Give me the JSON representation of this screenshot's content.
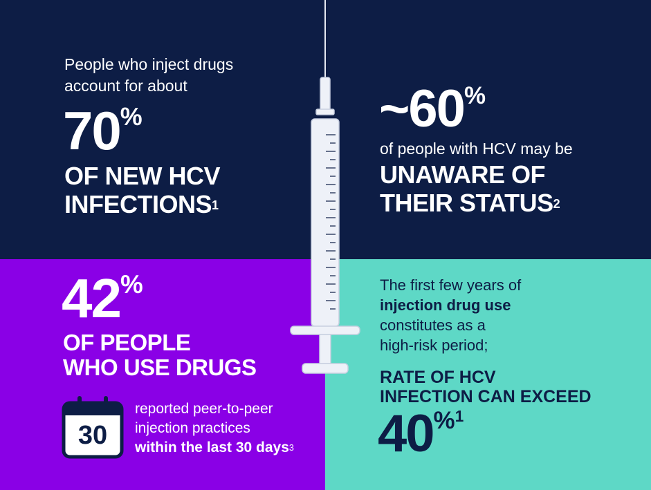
{
  "top_left": {
    "intro": "People who inject drugs account for about",
    "stat_number": "70",
    "stat_percent": "%",
    "headline_line1": "OF NEW HCV",
    "headline_line2": "INFECTIONS",
    "footnote": "1"
  },
  "top_right": {
    "stat_prefix": "~",
    "stat_number": "60",
    "stat_percent": "%",
    "intro": "of people with HCV may be",
    "headline_line1": "UNAWARE OF",
    "headline_line2": "THEIR STATUS",
    "footnote": "2"
  },
  "bottom_left": {
    "stat_number": "42",
    "stat_percent": "%",
    "headline_line1": "OF PEOPLE",
    "headline_line2": "WHO USE DRUGS",
    "calendar_day": "30",
    "detail_line1": "reported peer-to-peer",
    "detail_line2": "injection practices",
    "detail_bold": "within the last 30 days",
    "footnote": "3"
  },
  "bottom_right": {
    "intro_line1": "The first few years of",
    "intro_bold": "injection drug use",
    "intro_line3": "constitutes as a",
    "intro_line4": "high-risk period;",
    "headline_line1": "RATE OF HCV",
    "headline_line2": "INFECTION CAN EXCEED",
    "stat_number": "40",
    "stat_percent": "%",
    "footnote": "1"
  },
  "colors": {
    "navy": "#0d1d45",
    "purple": "#8a00e6",
    "teal": "#5ed8c6",
    "syringe_barrel": "#eef1f8",
    "syringe_outline": "#c8cfe0"
  },
  "icons": [
    "calendar-icon",
    "syringe-icon"
  ]
}
